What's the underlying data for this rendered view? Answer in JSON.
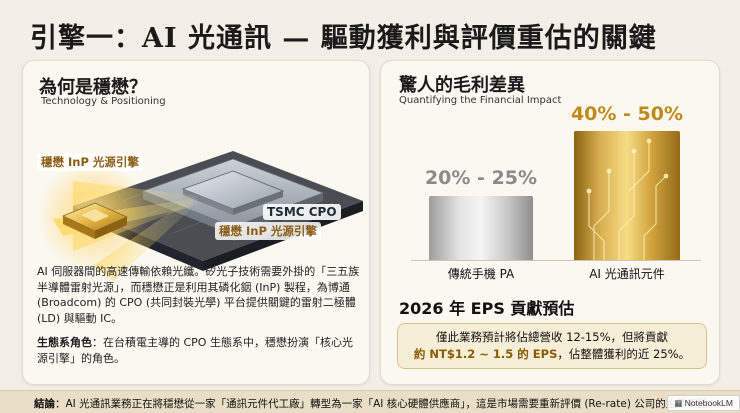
{
  "title": "引擎一：AI 光通訊 — 驅動獲利與評價重估的關鍵",
  "left_panel": {
    "heading": "為何是穩懋？",
    "subheading": "Technology & Positioning",
    "illustration": {
      "label_top": "穩懋 InP 光源引擎",
      "label_bottom": "穩懋 InP 光源引擎",
      "label_center": "TSMC CPO"
    },
    "paragraph1": "AI 伺服器間的高速傳輸依賴光纖。矽光子技術需要外掛的「三五族半導體雷射光源」，而穩懋正是利用其磷化銦 (InP) 製程，為博通 (Broadcom) 的 CPO (共同封裝光學) 平台提供關鍵的雷射二極體 (LD) 與驅動 IC。",
    "paragraph2_bold": "生態系角色",
    "paragraph2_rest": "：在台積電主導的 CPO 生態系中，穩懋扮演「核心光源引擎」的角色。"
  },
  "right_panel": {
    "heading": "驚人的毛利差異",
    "subheading": "Quantifying the Financial Impact",
    "bars": [
      {
        "value": "20% - 25%",
        "category": "傳統手機 PA",
        "color": "#c4c4c4"
      },
      {
        "value": "40% - 50%",
        "category": "AI 光通訊元件",
        "color": "#d4a63e"
      }
    ],
    "eps_title": "2026 年 EPS 貢獻預估",
    "eps_line1": "僅此業務預計將佔總營收 12-15%，但將貢獻",
    "eps_highlight": "約 NT$1.2 ~ 1.5 的 EPS",
    "eps_line2_rest": "，佔整體獲利的近 25%。"
  },
  "footer": {
    "label": "結論",
    "text": "：AI 光通訊業務正在將穩懋從一家「通訊元件代工廠」轉型為一家「AI 核心硬體供應商」，這是市場需要重新評價 (Re-rate) 公司的主要原因。",
    "badge": "NotebookLM"
  }
}
